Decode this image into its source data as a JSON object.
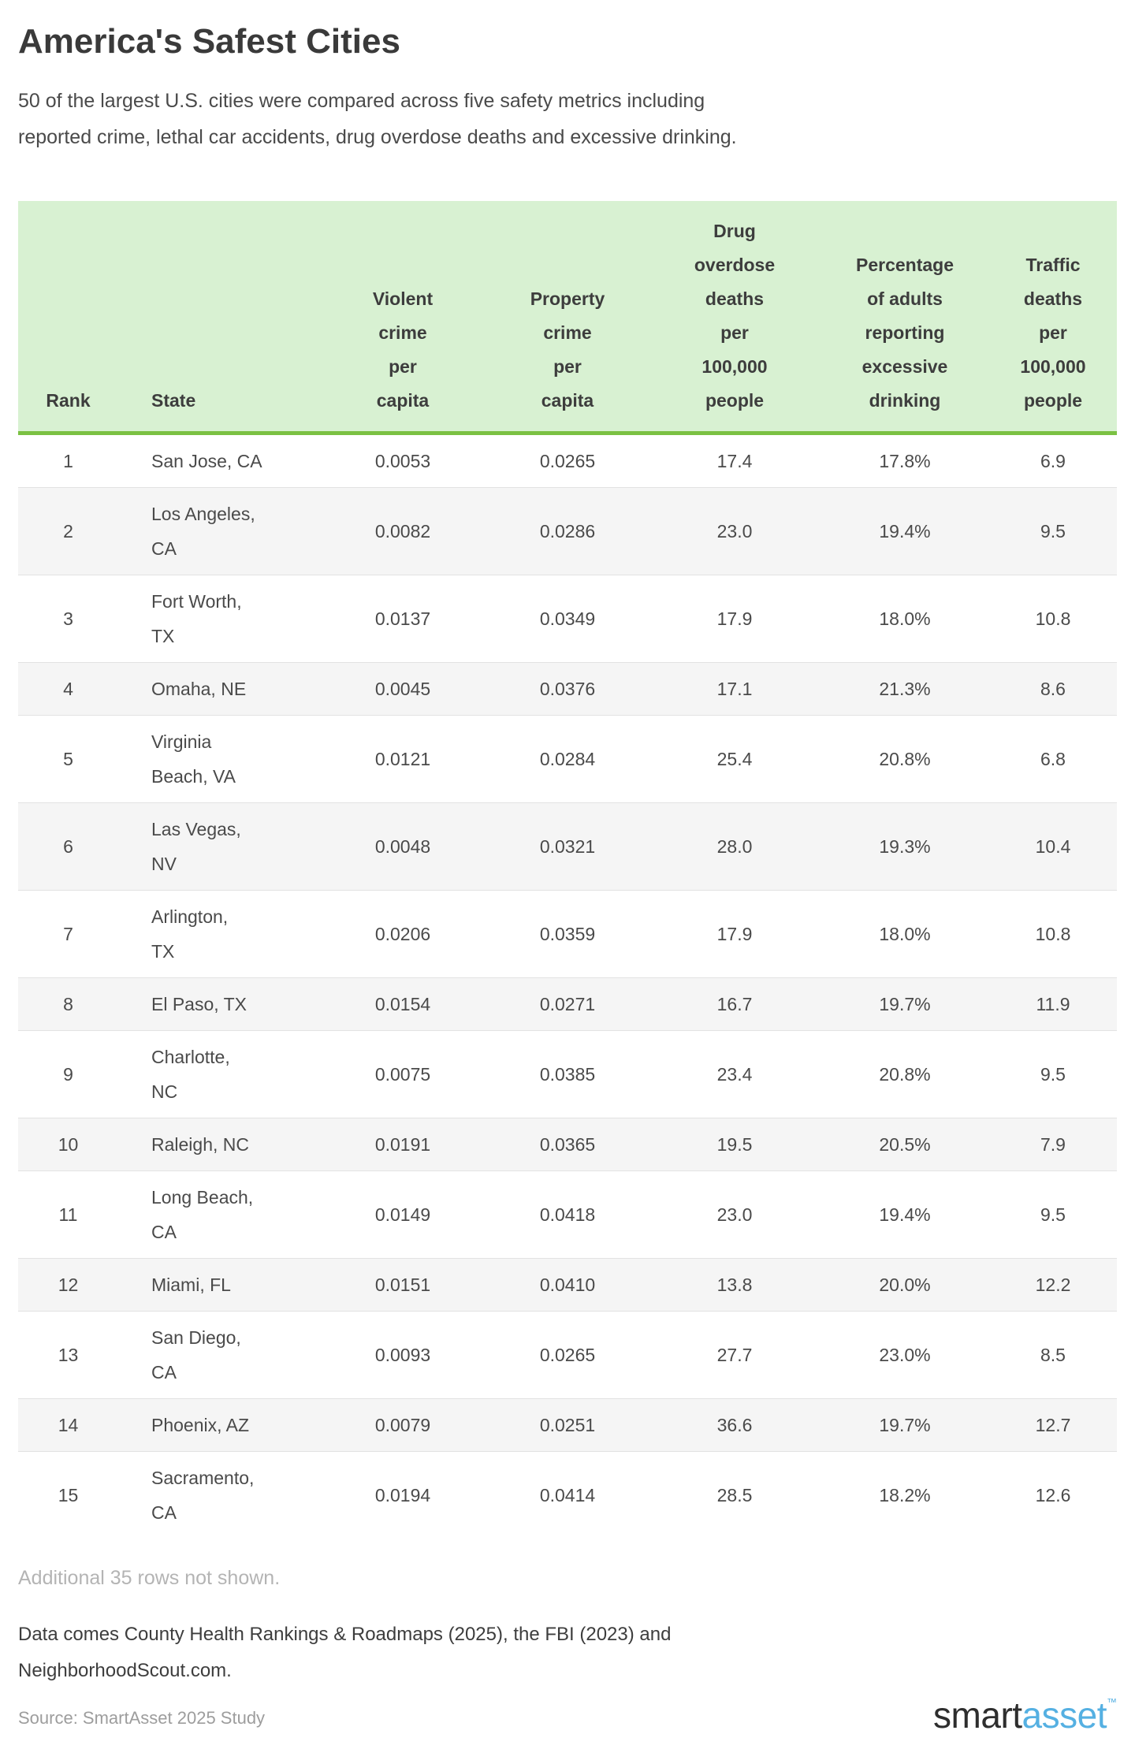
{
  "title": "America's Safest Cities",
  "subtitle": "50 of the largest U.S. cities were compared across five safety metrics including\nreported crime, lethal car accidents, drug overdose deaths and excessive drinking.",
  "chart_data": {
    "type": "table",
    "title": "America's Safest Cities",
    "columns": [
      "Rank",
      "State",
      "Violent crime per capita",
      "Property crime per capita",
      "Drug overdose deaths per 100,000 people",
      "Percentage of adults reporting excessive drinking",
      "Traffic deaths per 100,000 people"
    ],
    "rows": [
      [
        "1",
        "San Jose, CA",
        "0.0053",
        "0.0265",
        "17.4",
        "17.8%",
        "6.9"
      ],
      [
        "2",
        "Los Angeles, CA",
        "0.0082",
        "0.0286",
        "23.0",
        "19.4%",
        "9.5"
      ],
      [
        "3",
        "Fort Worth, TX",
        "0.0137",
        "0.0349",
        "17.9",
        "18.0%",
        "10.8"
      ],
      [
        "4",
        "Omaha, NE",
        "0.0045",
        "0.0376",
        "17.1",
        "21.3%",
        "8.6"
      ],
      [
        "5",
        "Virginia Beach, VA",
        "0.0121",
        "0.0284",
        "25.4",
        "20.8%",
        "6.8"
      ],
      [
        "6",
        "Las Vegas, NV",
        "0.0048",
        "0.0321",
        "28.0",
        "19.3%",
        "10.4"
      ],
      [
        "7",
        "Arlington, TX",
        "0.0206",
        "0.0359",
        "17.9",
        "18.0%",
        "10.8"
      ],
      [
        "8",
        "El Paso, TX",
        "0.0154",
        "0.0271",
        "16.7",
        "19.7%",
        "11.9"
      ],
      [
        "9",
        "Charlotte, NC",
        "0.0075",
        "0.0385",
        "23.4",
        "20.8%",
        "9.5"
      ],
      [
        "10",
        "Raleigh, NC",
        "0.0191",
        "0.0365",
        "19.5",
        "20.5%",
        "7.9"
      ],
      [
        "11",
        "Long Beach, CA",
        "0.0149",
        "0.0418",
        "23.0",
        "19.4%",
        "9.5"
      ],
      [
        "12",
        "Miami, FL",
        "0.0151",
        "0.0410",
        "13.8",
        "20.0%",
        "12.2"
      ],
      [
        "13",
        "San Diego, CA",
        "0.0093",
        "0.0265",
        "27.7",
        "23.0%",
        "8.5"
      ],
      [
        "14",
        "Phoenix, AZ",
        "0.0079",
        "0.0251",
        "36.6",
        "19.7%",
        "12.7"
      ],
      [
        "15",
        "Sacramento, CA",
        "0.0194",
        "0.0414",
        "28.5",
        "18.2%",
        "12.6"
      ]
    ]
  },
  "display": {
    "columns": [
      "Rank",
      "State",
      "Violent\ncrime\nper\ncapita",
      "Property\ncrime\nper\ncapita",
      "Drug\noverdose\ndeaths\nper\n100,000\npeople",
      "Percentage\nof adults\nreporting\nexcessive\ndrinking",
      "Traffic\ndeaths\nper\n100,000\npeople"
    ],
    "cities": [
      "San Jose, CA",
      "Los Angeles,\nCA",
      "Fort Worth,\nTX",
      "Omaha, NE",
      "Virginia\nBeach, VA",
      "Las Vegas,\nNV",
      "Arlington,\nTX",
      "El Paso, TX",
      "Charlotte,\nNC",
      "Raleigh, NC",
      "Long Beach,\nCA",
      "Miami, FL",
      "San Diego,\nCA",
      "Phoenix, AZ",
      "Sacramento,\nCA"
    ]
  },
  "notes": {
    "additional": "Additional 35 rows not shown.",
    "sources": "Data comes County Health Rankings & Roadmaps (2025), the FBI (2023) and\nNeighborhoodScout.com.",
    "credit": "Source: SmartAsset 2025 Study"
  },
  "logo": {
    "dark": "smart",
    "blue": "asset",
    "tm": "™"
  },
  "colors": {
    "header_background": "#d8f1d2",
    "accent_green": "#7bc143",
    "stripe_gray": "#f5f5f5",
    "row_border": "#e2e2e2",
    "text_dark": "#3a3a3a",
    "text_body": "#4a4a4a",
    "text_muted": "#b4b4b4",
    "text_credit": "#9d9d9d",
    "logo_dark": "#2e2e2e",
    "logo_blue": "#55b0e2"
  }
}
